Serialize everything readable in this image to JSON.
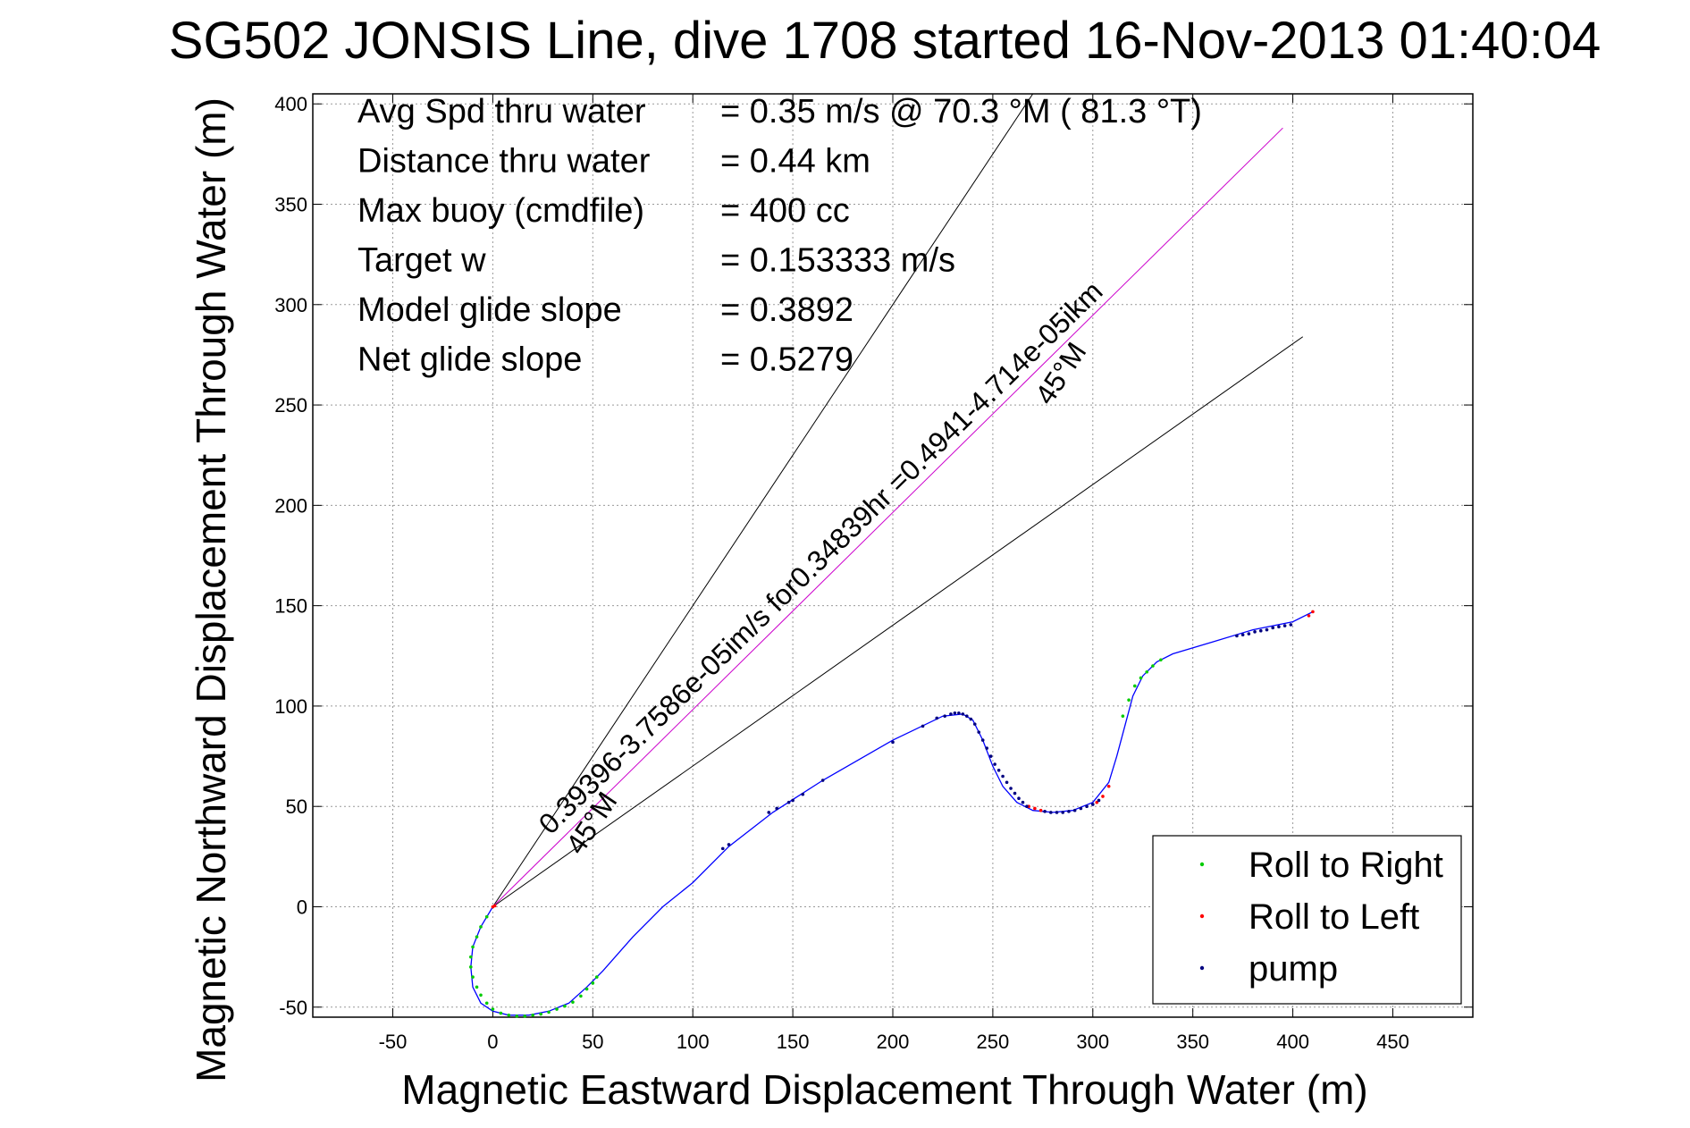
{
  "chart_data": {
    "type": "line",
    "title": "SG502 JONSIS Line, dive 1708 started 16-Nov-2013 01:40:04",
    "xlabel": "Magnetic Eastward Displacement Through Water (m)",
    "ylabel": "Magnetic Northward Displacement Through Water (m)",
    "xlim": [
      -90,
      490
    ],
    "ylim": [
      -55,
      405
    ],
    "xticks": [
      -50,
      0,
      50,
      100,
      150,
      200,
      250,
      300,
      350,
      400,
      450
    ],
    "yticks": [
      -50,
      0,
      50,
      100,
      150,
      200,
      250,
      300,
      350,
      400
    ],
    "grid": true,
    "legend_position": "bottom-right",
    "annotations": [
      {
        "label": "Avg Spd thru water",
        "value": "=  0.35 m/s @  70.3 °M ( 81.3 °T)"
      },
      {
        "label": "Distance thru water",
        "value": "=  0.44 km"
      },
      {
        "label": "Max buoy (cmdfile)",
        "value": "= 400 cc"
      },
      {
        "label": "Target w",
        "value": "= 0.153333 m/s"
      },
      {
        "label": "Model glide slope",
        "value": "= 0.3892"
      },
      {
        "label": "Net glide slope",
        "value": "= 0.5279"
      }
    ],
    "rotated_labels": {
      "current_text": "0.39396-3.7586e-05im/s for0.34839hr =0.4941-4.714e-05ikm",
      "left_angle_text": "45°M",
      "right_angle_text": "45°M"
    },
    "reference_lines": [
      {
        "from": [
          0,
          0
        ],
        "to": [
          270,
          405
        ]
      },
      {
        "from": [
          0,
          0
        ],
        "to": [
          405,
          284
        ]
      },
      {
        "from": [
          0,
          0
        ],
        "to": [
          395,
          388
        ],
        "color": "#cc00cc"
      }
    ],
    "track": {
      "color": "#0000ff",
      "x": [
        0,
        -6,
        -10,
        -11,
        -10,
        -6,
        0,
        8,
        18,
        28,
        38,
        47,
        55,
        70,
        85,
        100,
        118,
        140,
        165,
        200,
        225,
        235,
        240,
        245,
        250,
        255,
        262,
        270,
        280,
        290,
        300,
        308,
        312,
        316,
        320,
        325,
        332,
        340,
        360,
        380,
        400,
        410
      ],
      "y": [
        0,
        -10,
        -20,
        -30,
        -40,
        -48,
        -52,
        -54,
        -54,
        -52,
        -48,
        -40,
        -32,
        -15,
        0,
        12,
        30,
        47,
        63,
        83,
        95,
        96,
        93,
        83,
        70,
        60,
        52,
        48,
        47,
        48,
        52,
        62,
        75,
        90,
        105,
        115,
        122,
        126,
        132,
        138,
        142,
        147
      ]
    },
    "series": [
      {
        "name": "Roll to Right",
        "color": "#00cc00",
        "x": [
          -3,
          -6,
          -8,
          -10,
          -11,
          -11,
          -10,
          -8,
          -6,
          -3,
          0,
          4,
          8,
          12,
          16,
          20,
          24,
          28,
          32,
          36,
          40,
          44,
          47,
          50,
          52,
          315,
          318,
          321,
          324,
          327,
          330,
          334
        ],
        "y": [
          -5,
          -10,
          -15,
          -20,
          -25,
          -30,
          -35,
          -40,
          -44,
          -48,
          -51,
          -53,
          -54,
          -54.5,
          -54.5,
          -54,
          -53.5,
          -52.5,
          -51,
          -49.5,
          -47.5,
          -44.5,
          -41,
          -38,
          -35,
          95,
          103,
          110,
          114,
          117,
          120,
          123
        ]
      },
      {
        "name": "Roll to Left",
        "color": "#ff0000",
        "x": [
          0,
          1,
          268,
          271,
          274,
          302,
          305,
          308,
          408,
          410
        ],
        "y": [
          0,
          0.5,
          50,
          49,
          48,
          52,
          55,
          60,
          145,
          147
        ]
      },
      {
        "name": "pump",
        "color": "#000080",
        "x": [
          115,
          118,
          138,
          142,
          148,
          150,
          155,
          165,
          200,
          215,
          222,
          226,
          229,
          231,
          233,
          235,
          237,
          239,
          241,
          243,
          245,
          247,
          249,
          251,
          253,
          255,
          257,
          259,
          261,
          263,
          265,
          267,
          276,
          279,
          282,
          285,
          288,
          291,
          294,
          297,
          300,
          303,
          372,
          375,
          378,
          381,
          384,
          387,
          390,
          393,
          396,
          399
        ],
        "y": [
          29,
          31,
          47,
          49,
          52,
          53,
          56,
          63,
          82,
          90,
          94,
          95,
          96,
          96.5,
          96.5,
          96,
          95,
          93.5,
          91,
          87,
          83,
          79,
          75,
          71,
          68,
          65,
          62,
          59,
          56.5,
          54,
          52,
          50,
          47.5,
          47,
          47,
          47,
          47.5,
          48,
          49,
          50,
          51,
          53,
          135,
          135.5,
          136,
          137,
          137.5,
          138,
          139,
          139.5,
          140,
          140.5
        ]
      }
    ]
  }
}
